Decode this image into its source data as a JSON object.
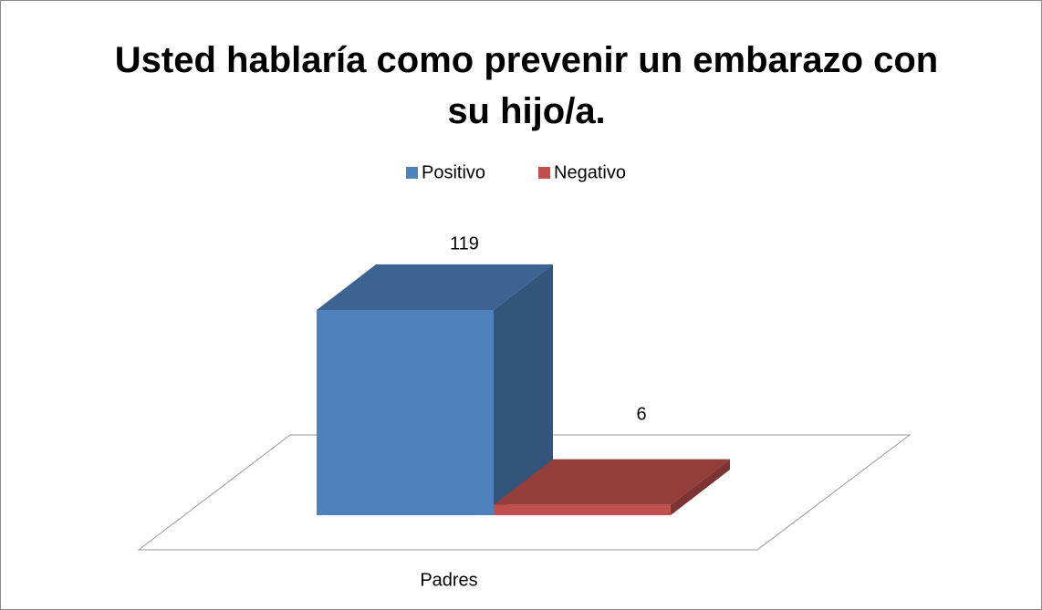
{
  "chart_data": {
    "type": "bar",
    "title": "Usted hablaría como prevenir un embarazo con su hijo/a.",
    "categories": [
      "Padres"
    ],
    "series": [
      {
        "name": "Positivo",
        "color": "#4f81bd",
        "values": [
          119
        ]
      },
      {
        "name": "Negativo",
        "color": "#c0504d",
        "values": [
          6
        ]
      }
    ],
    "legend": "top",
    "grid": false
  }
}
